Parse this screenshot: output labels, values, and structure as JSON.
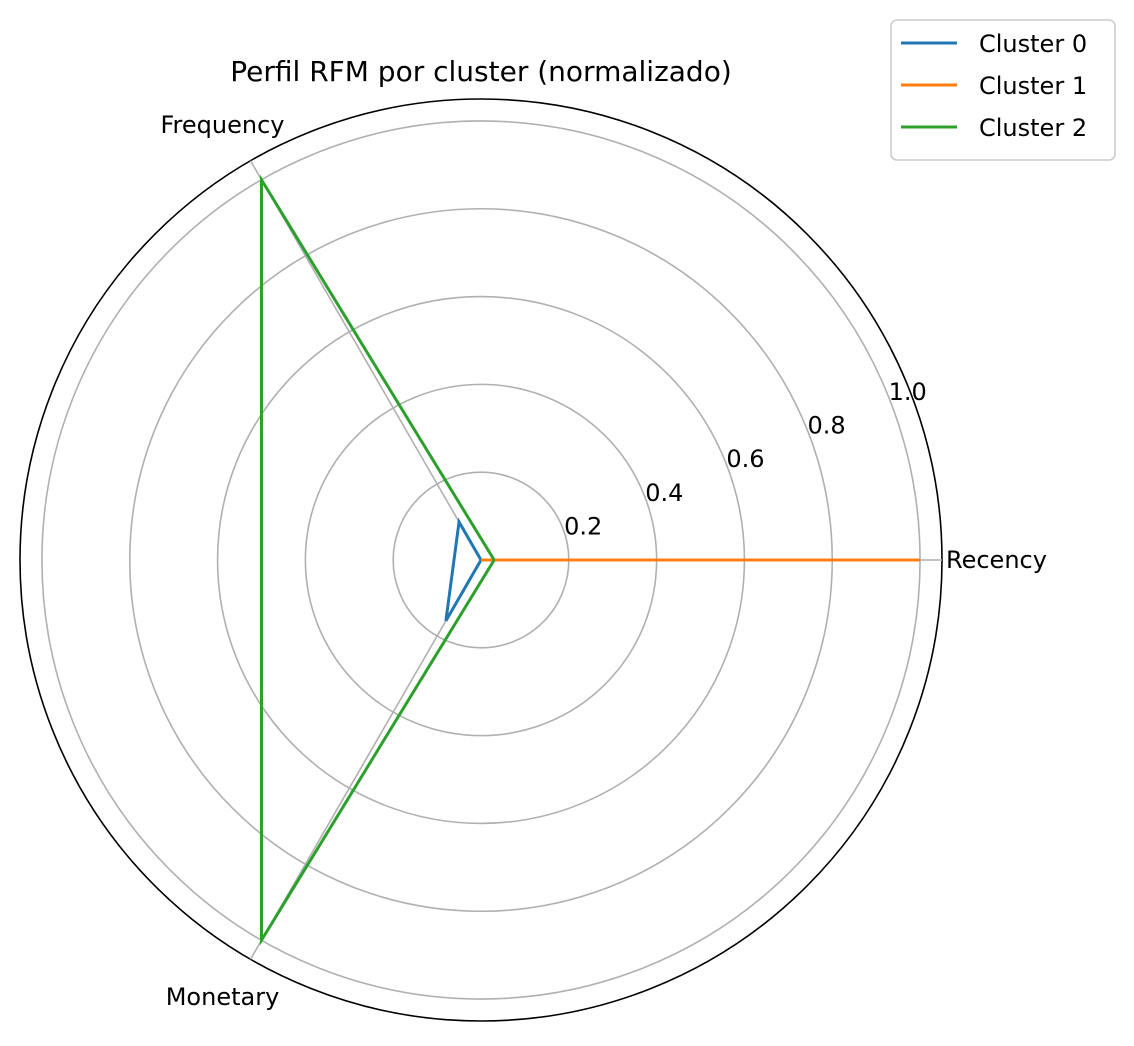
{
  "chart_data": {
    "type": "radar",
    "title": "Perfil RFM por cluster (normalizado)",
    "axes": [
      "Recency",
      "Frequency",
      "Monetary"
    ],
    "radial_ticks": [
      0.2,
      0.4,
      0.6,
      0.8,
      1.0
    ],
    "radial_tick_labels": [
      "0.2",
      "0.4",
      "0.6",
      "0.8",
      "1.0"
    ],
    "rlim": [
      0,
      1.05
    ],
    "grid": true,
    "legend_position": "top-right",
    "series": [
      {
        "name": "Cluster 0",
        "color": "#1f77b4",
        "values": [
          0.0,
          0.1,
          0.16
        ]
      },
      {
        "name": "Cluster 1",
        "color": "#ff7f0e",
        "values": [
          1.0,
          0.0,
          0.0
        ]
      },
      {
        "name": "Cluster 2",
        "color": "#2ca02c",
        "values": [
          0.03,
          1.0,
          1.0
        ]
      }
    ]
  }
}
